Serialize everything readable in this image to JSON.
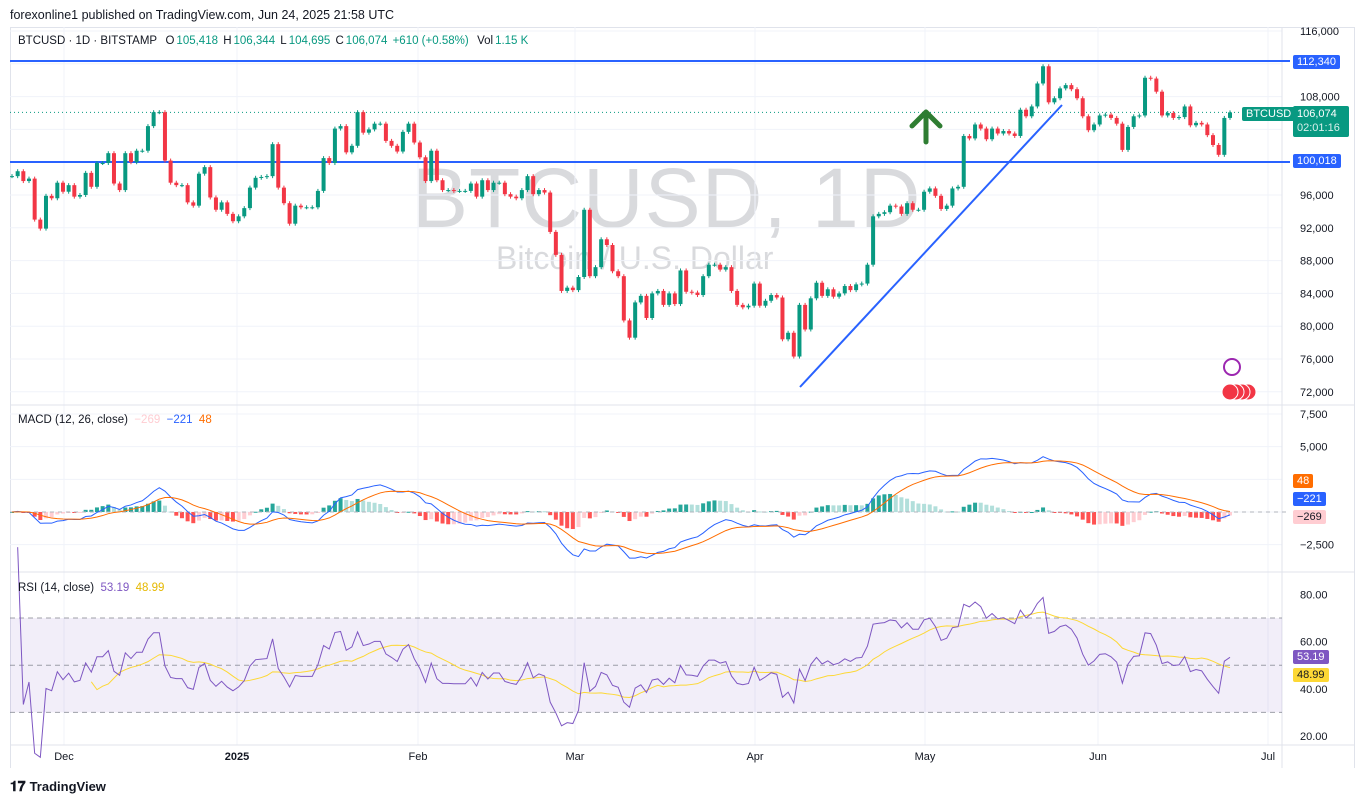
{
  "publisher_line": "forexonline1 published on TradingView.com, Jun 24, 2025 21:58 UTC",
  "symbol_header": {
    "title": "BTCUSD · 1D · BITSTAMP",
    "open_label": "O",
    "open": "105,418",
    "high_label": "H",
    "high": "106,344",
    "low_label": "L",
    "low": "104,695",
    "close_label": "C",
    "close": "106,074",
    "change": "+610 (+0.58%)",
    "vol_label": "Vol",
    "vol": "1.15 K"
  },
  "watermark": {
    "symbol": "BTCUSD, 1D",
    "description": "Bitcoin / U.S. Dollar"
  },
  "price_tags": {
    "resistance": "112,340",
    "support": "100,018",
    "symbol": "BTCUSD",
    "last_price": "106,074",
    "countdown": "02:01:16"
  },
  "macd": {
    "title": "MACD (12, 26, close)",
    "histogram": "−269",
    "macd": "−221",
    "signal": "48"
  },
  "rsi": {
    "title": "RSI (14, close)",
    "rsi": "53.19",
    "ma": "48.99"
  },
  "footer": {
    "brand": "TradingView"
  },
  "colors": {
    "up": "#089981",
    "down": "#f23645",
    "level_line": "#2962ff",
    "macd": "#2962ff",
    "signal": "#ff6d00",
    "rsi": "#7e57c2",
    "rsi_ma": "#fdd835",
    "arrow": "#2e7d32"
  },
  "chart_data": [
    {
      "type": "candlestick",
      "title": "BTCUSD · 1D · BITSTAMP",
      "x_start": "2024-11-21",
      "x_end": "2025-06-24",
      "x_tick_labels": [
        "Dec",
        "2025",
        "Feb",
        "Mar",
        "Apr",
        "May",
        "Jun",
        "Jul"
      ],
      "y_tick_labels": [
        "116,000",
        "108,000",
        "96,000",
        "92,000",
        "88,000",
        "84,000",
        "80,000",
        "76,000",
        "72,000"
      ],
      "ylim": [
        72000,
        116000
      ],
      "horizontal_levels": [
        112340,
        100018
      ],
      "closes": [
        98.3,
        98.9,
        97.7,
        98.0,
        93.0,
        91.9,
        95.9,
        95.6,
        97.5,
        96.4,
        97.2,
        95.8,
        96.0,
        98.7,
        97.0,
        99.9,
        99.9,
        101.1,
        97.4,
        96.6,
        101.1,
        100.0,
        101.4,
        101.4,
        104.4,
        106.1,
        106.1,
        100.2,
        97.5,
        97.2,
        97.2,
        95.1,
        94.7,
        98.6,
        99.4,
        95.7,
        94.2,
        95.1,
        93.7,
        92.8,
        93.4,
        94.4,
        96.9,
        98.1,
        98.2,
        98.3,
        102.2,
        96.9,
        95.0,
        92.5,
        94.7,
        94.5,
        94.5,
        94.5,
        96.5,
        100.5,
        99.9,
        104.1,
        104.4,
        101.2,
        102.0,
        106.1,
        103.6,
        104.0,
        104.7,
        104.7,
        102.6,
        102.0,
        101.3,
        103.7,
        104.7,
        102.4,
        100.6,
        97.7,
        101.4,
        97.8,
        96.6,
        96.6,
        96.5,
        96.5,
        96.5,
        97.4,
        95.8,
        97.8,
        96.6,
        97.5,
        97.5,
        96.1,
        95.8,
        95.6,
        96.6,
        98.3,
        96.1,
        96.6,
        96.3,
        91.5,
        88.7,
        84.3,
        84.7,
        84.4,
        86.0,
        94.2,
        86.1,
        87.2,
        90.6,
        89.9,
        86.7,
        86.1,
        80.7,
        78.6,
        82.9,
        83.7,
        81.0,
        84.0,
        84.3,
        82.6,
        84.0,
        82.7,
        86.8,
        84.2,
        84.1,
        83.8,
        86.1,
        87.5,
        87.5,
        86.9,
        87.2,
        84.3,
        82.6,
        82.3,
        82.5,
        85.2,
        82.5,
        83.1,
        83.8,
        83.5,
        78.4,
        79.2,
        76.3,
        82.6,
        79.6,
        83.4,
        85.3,
        83.7,
        84.5,
        83.6,
        84.0,
        84.9,
        84.4,
        85.1,
        85.2,
        87.5,
        93.4,
        93.7,
        93.9,
        94.7,
        94.6,
        93.7,
        95.0,
        94.2,
        94.2,
        96.4,
        96.8,
        95.9,
        94.3,
        94.7,
        96.8,
        97.0,
        103.2,
        102.9,
        104.6,
        104.1,
        102.8,
        104.1,
        103.5,
        103.8,
        103.5,
        103.2,
        106.4,
        105.6,
        106.8,
        109.6,
        111.7,
        107.3,
        107.8,
        109.0,
        109.4,
        108.9,
        107.8,
        105.6,
        103.9,
        104.6,
        105.7,
        105.8,
        105.4,
        104.7,
        101.5,
        104.3,
        105.6,
        105.7,
        110.3,
        110.2,
        108.6,
        105.7,
        106.0,
        105.4,
        105.5,
        106.8,
        104.5,
        104.8,
        104.6,
        103.3,
        102.1,
        100.9,
        105.4,
        106.074
      ],
      "closes_unit": "thousand USD"
    },
    {
      "type": "line",
      "title": "MACD (12, 26, close)",
      "y_tick_labels": [
        "7,500",
        "5,000",
        "−2,500"
      ],
      "last": {
        "histogram": -269,
        "macd": -221,
        "signal": 48
      }
    },
    {
      "type": "line",
      "title": "RSI (14, close)",
      "y_tick_labels": [
        "80.00",
        "60.00",
        "40.00",
        "20.00"
      ],
      "bands": [
        70,
        30
      ],
      "last": {
        "rsi": 53.19,
        "ma": 48.99
      }
    }
  ]
}
